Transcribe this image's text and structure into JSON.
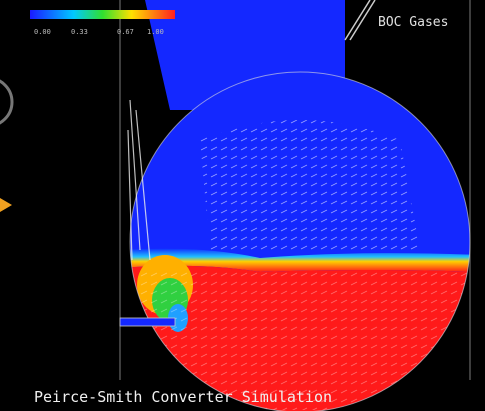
{
  "image": {
    "labels": {
      "company": "BOC Gases",
      "caption": "Peirce-Smith Converter Simulation"
    },
    "colorbar": {
      "ticks": [
        "0.00",
        "0.33",
        "0.67",
        "1.00"
      ]
    }
  }
}
